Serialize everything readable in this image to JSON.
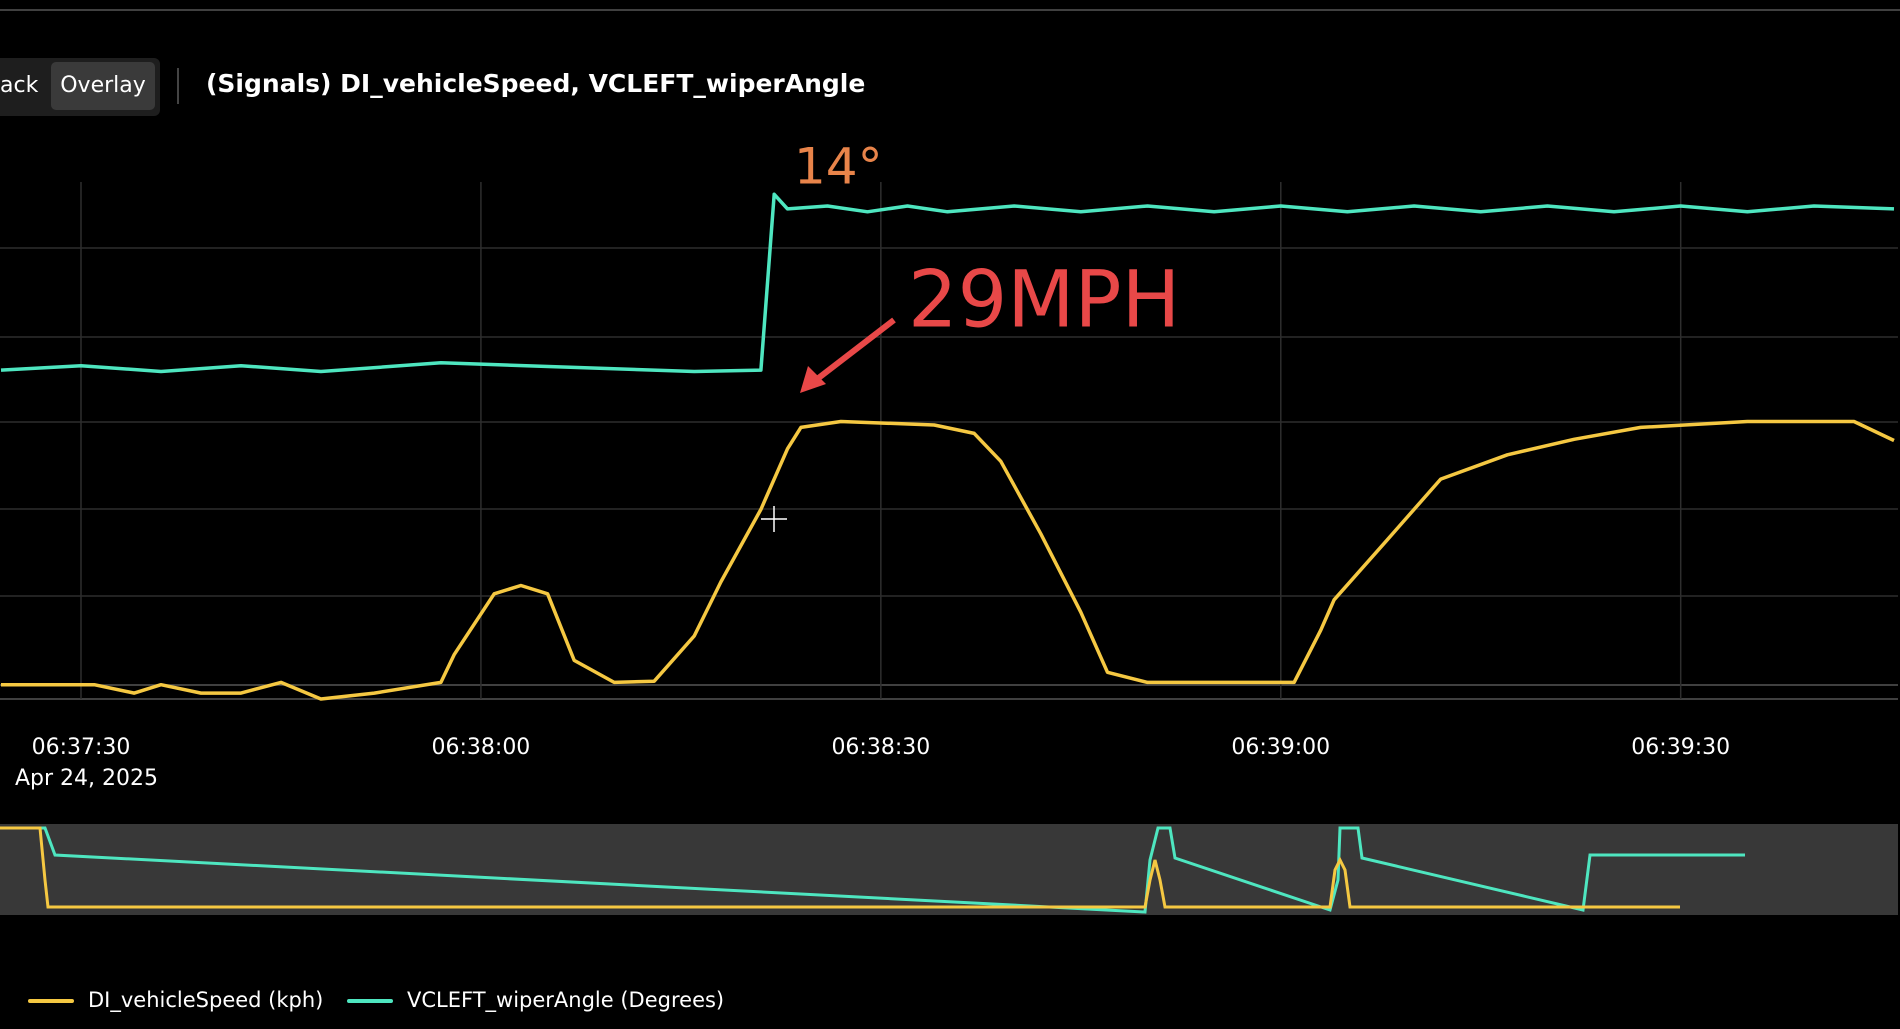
{
  "toolbar": {
    "buttons": [
      "ack",
      "Overlay"
    ]
  },
  "chart_data": {
    "type": "line",
    "title": "(Signals) DI_vehicleSpeed, VCLEFT_wiperAngle",
    "date": "Apr 24, 2025",
    "annotations": [
      "14°",
      "29MPH"
    ],
    "xlim": [
      "06:37:24",
      "06:39:46"
    ],
    "xticks": [
      "06:37:30",
      "06:38:00",
      "06:38:30",
      "06:39:00",
      "06:39:30"
    ],
    "ylim": [
      0,
      87
    ],
    "y2lim": [
      -20.75,
      14.85
    ],
    "grid": true,
    "series": [
      {
        "name": "DI_vehicleSpeed (kph)",
        "color": "#f5c842",
        "x": [
          "06:37:24",
          "06:37:31",
          "06:37:34",
          "06:37:36",
          "06:37:39",
          "06:37:42",
          "06:37:45",
          "06:37:48",
          "06:37:52",
          "06:37:57",
          "06:37:58",
          "06:38:01",
          "06:38:03",
          "06:38:05",
          "06:38:07",
          "06:38:10",
          "06:38:13",
          "06:38:16",
          "06:38:18",
          "06:38:21",
          "06:38:23",
          "06:38:24",
          "06:38:27",
          "06:38:34",
          "06:38:37",
          "06:38:39",
          "06:38:42",
          "06:38:45",
          "06:38:47",
          "06:38:50",
          "06:39:01",
          "06:39:03",
          "06:39:04",
          "06:39:08",
          "06:39:12",
          "06:39:17",
          "06:39:22",
          "06:39:27",
          "06:39:35",
          "06:39:43",
          "06:39:46"
        ],
        "values": [
          2.4,
          2.4,
          1.0,
          2.4,
          1.0,
          1.0,
          2.8,
          0,
          1.0,
          2.8,
          7.5,
          17.7,
          19.1,
          17.7,
          6.5,
          2.8,
          3.0,
          10.6,
          19.7,
          31.9,
          42.1,
          45.7,
          46.7,
          46.1,
          44.7,
          40.0,
          27.8,
          14.6,
          4.5,
          2.8,
          2.8,
          11.6,
          16.7,
          26.8,
          37.0,
          41.1,
          43.7,
          45.7,
          46.7,
          46.7,
          43.5
        ]
      },
      {
        "name": "VCLEFT_wiperAngle (Degrees)",
        "color": "#4ee6c0",
        "axis": "y2",
        "x": [
          "06:37:24",
          "06:37:30",
          "06:37:36",
          "06:37:42",
          "06:37:48",
          "06:37:57",
          "06:38:16",
          "06:38:21",
          "06:38:22",
          "06:38:23",
          "06:38:26",
          "06:38:29",
          "06:38:32",
          "06:38:35",
          "06:38:40",
          "06:38:45",
          "06:38:50",
          "06:38:55",
          "06:39:00",
          "06:39:05",
          "06:39:10",
          "06:39:15",
          "06:39:20",
          "06:39:25",
          "06:39:30",
          "06:39:35",
          "06:39:40",
          "06:39:46"
        ],
        "values": [
          1.9,
          2.2,
          1.8,
          2.2,
          1.8,
          2.4,
          1.8,
          1.9,
          14,
          13,
          13.2,
          12.8,
          13.2,
          12.8,
          13.2,
          12.8,
          13.2,
          12.8,
          13.2,
          12.8,
          13.2,
          12.8,
          13.2,
          12.8,
          13.2,
          12.8,
          13.2,
          13.0
        ]
      }
    ]
  }
}
